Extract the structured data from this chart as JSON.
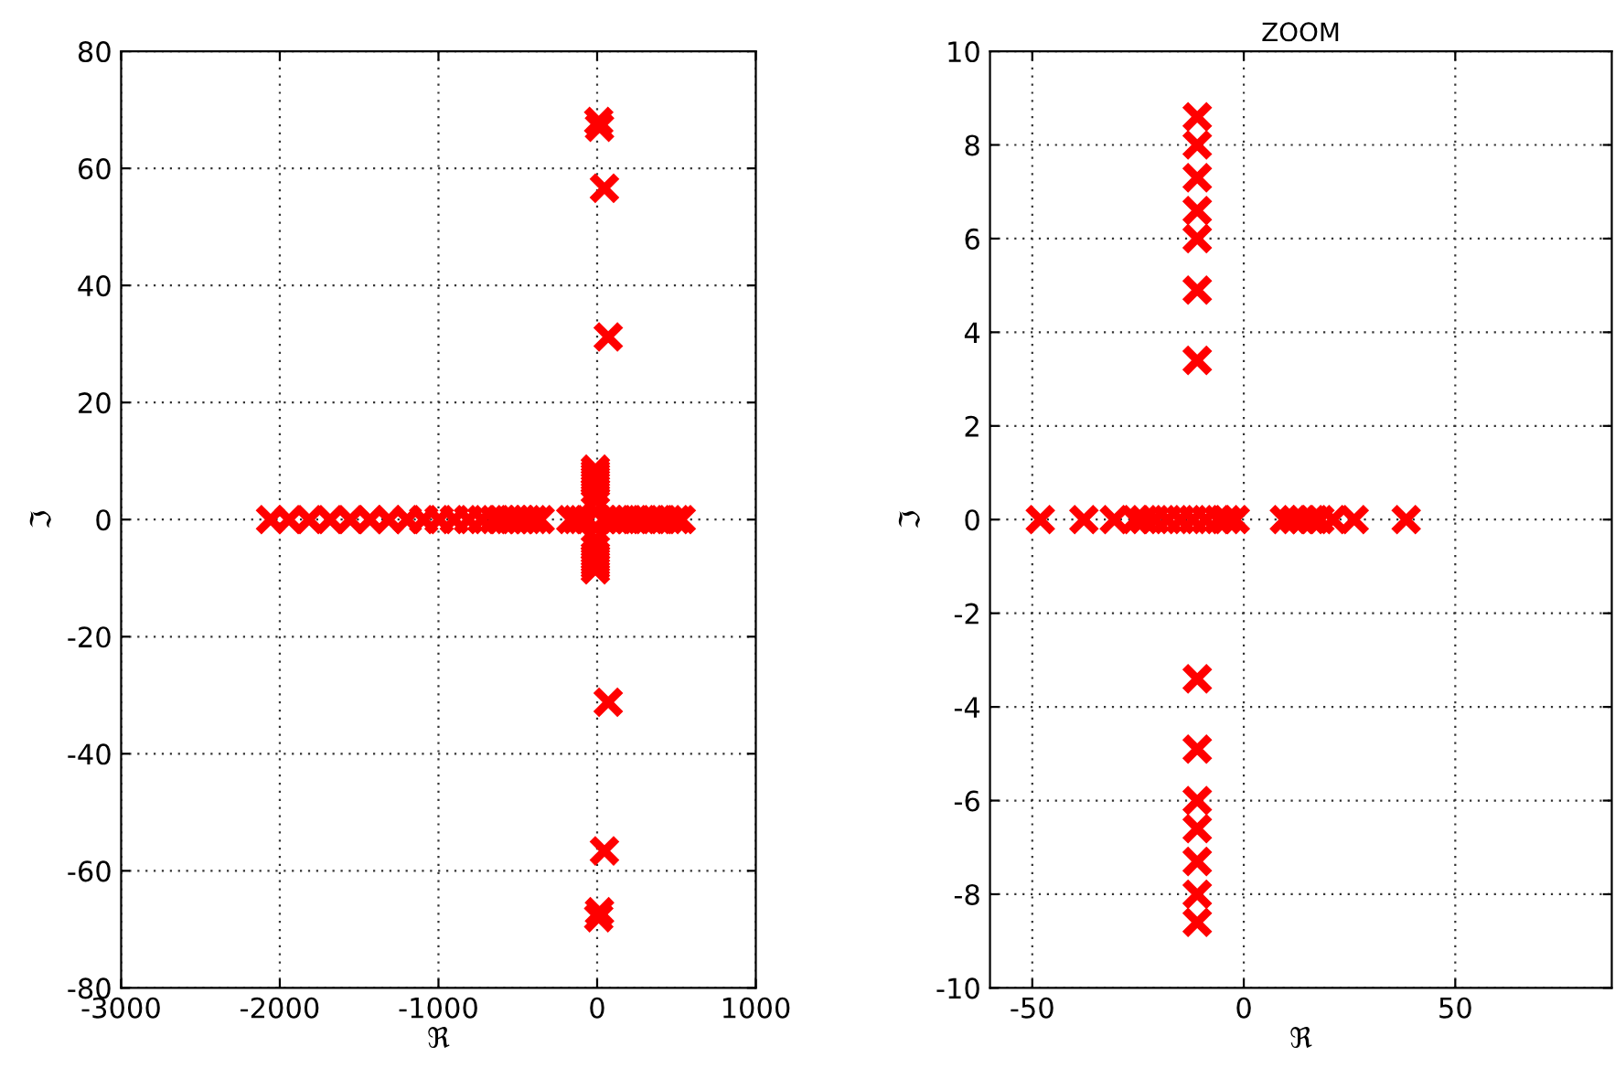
{
  "chart_data": [
    {
      "type": "scatter",
      "xlabel": "ℜ",
      "ylabel": "ℑ",
      "xlim": [
        -3000,
        1000
      ],
      "ylim": [
        -80,
        80
      ],
      "xticks": [
        -3000,
        -2000,
        -1000,
        0,
        1000
      ],
      "yticks": [
        -80,
        -60,
        -40,
        -20,
        0,
        20,
        40,
        60,
        80
      ],
      "grid": true,
      "marker": "cross",
      "series": [
        {
          "color": "#ff0000",
          "x": [
            -2058,
            -1942,
            -1815,
            -1683,
            -1556,
            -1432,
            -1313,
            -1197,
            -1093,
            -996,
            -900,
            -811,
            -726,
            -649,
            -600,
            -560,
            -520,
            -480,
            -440,
            -400,
            -359,
            -166,
            -130,
            -95,
            -60,
            40,
            80,
            120,
            160,
            200,
            250,
            300,
            350,
            400,
            450,
            500,
            530,
            -11,
            -11,
            -11,
            -11,
            -11,
            -11,
            -11,
            -11,
            -11,
            -11,
            -11,
            -11,
            -11,
            -11,
            -11,
            -11,
            10,
            15,
            46,
            70,
            10,
            15,
            46,
            70
          ],
          "values": [
            0,
            0,
            0,
            0,
            0,
            0,
            0,
            0,
            0,
            0,
            0,
            0,
            0,
            0,
            0,
            0,
            0,
            0,
            0,
            0,
            0,
            0,
            0,
            0,
            0,
            0,
            0,
            0,
            0,
            0,
            0,
            0,
            0,
            0,
            0,
            0,
            0,
            6.0,
            6.5,
            7.0,
            7.5,
            8.0,
            8.6,
            4.9,
            3.4,
            -6.0,
            -6.5,
            -7.0,
            -7.5,
            -8.0,
            -8.6,
            -4.9,
            -3.4,
            68,
            67,
            56.6,
            31.2,
            -68,
            -67,
            -56.6,
            -31.2
          ]
        }
      ]
    },
    {
      "type": "scatter",
      "title": "ZOOM",
      "xlabel": "ℜ",
      "ylabel": "ℑ",
      "xlim": [
        -60,
        87
      ],
      "ylim": [
        -10,
        10
      ],
      "xticks": [
        -50,
        0,
        50
      ],
      "yticks": [
        -10,
        -8,
        -6,
        -4,
        -2,
        0,
        2,
        4,
        6,
        8,
        10
      ],
      "grid": true,
      "marker": "cross",
      "series": [
        {
          "color": "#ff0000",
          "x": [
            -48.1,
            -37.8,
            -30.6,
            -25.6,
            -23.6,
            -21,
            -18,
            -15,
            -12,
            -9,
            -6,
            -4,
            -2,
            9.6,
            12,
            14,
            16,
            18,
            21.1,
            26.1,
            38.4,
            -11,
            -11,
            -11,
            -11,
            -11,
            -11,
            -11,
            -11,
            -11,
            -11,
            -11,
            -11,
            -11,
            -11
          ],
          "values": [
            0,
            0,
            0,
            0,
            0,
            0,
            0,
            0,
            0,
            0,
            0,
            0,
            0,
            0,
            0,
            0,
            0,
            0,
            0,
            0,
            0,
            6.0,
            6.6,
            7.3,
            8.0,
            8.6,
            4.9,
            3.4,
            -6.0,
            -6.6,
            -7.3,
            -8.0,
            -8.6,
            -4.9,
            -3.4
          ]
        }
      ]
    }
  ]
}
